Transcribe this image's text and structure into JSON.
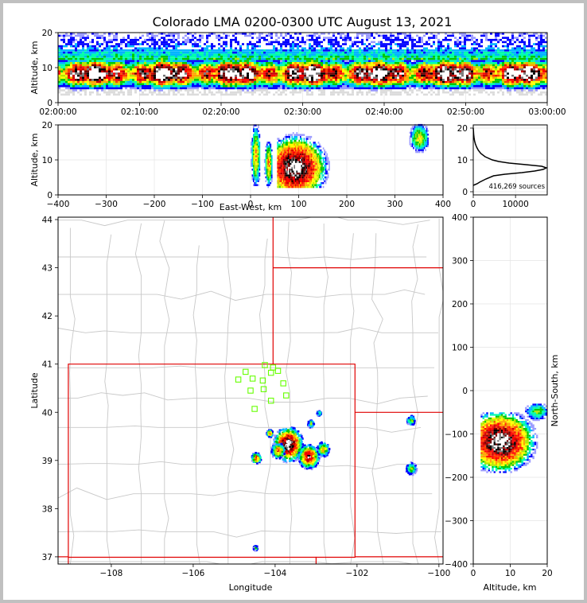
{
  "chart_data": [
    {
      "id": "time_altitude",
      "type": "heatmap",
      "title": "Colorado LMA 0200-0300 UTC August 13, 2021",
      "xlabel": "",
      "ylabel": "Altitude, km",
      "x_ticks": [
        "02:00:00",
        "02:10:00",
        "02:20:00",
        "02:30:00",
        "02:40:00",
        "02:50:00",
        "03:00:00"
      ],
      "y_ticks": [
        0,
        10,
        20
      ],
      "xlim": [
        "02:00:00",
        "03:00:00"
      ],
      "ylim": [
        0,
        20
      ],
      "altitude_band_km": [
        2,
        20
      ],
      "core_altitude_km": [
        5,
        11
      ]
    },
    {
      "id": "east_west_altitude",
      "type": "heatmap",
      "xlabel": "East-West, km",
      "ylabel": "Altitude, km",
      "x_ticks": [
        -400,
        -300,
        -200,
        -100,
        0,
        100,
        200,
        300,
        400
      ],
      "y_ticks": [
        0,
        10,
        20
      ],
      "xlim": [
        -400,
        400
      ],
      "ylim": [
        0,
        20
      ],
      "clusters": [
        {
          "x": [
            0,
            20
          ],
          "alt": [
            2,
            20
          ],
          "peak": 0.5
        },
        {
          "x": [
            28,
            45
          ],
          "alt": [
            2,
            15
          ],
          "peak": 0.55
        },
        {
          "x": [
            55,
            185
          ],
          "alt": [
            2,
            20
          ],
          "peak": 1.0,
          "core_x": 92,
          "core_alt": 7.5
        },
        {
          "x": [
            330,
            370
          ],
          "alt": [
            12,
            20
          ],
          "peak": 0.45
        }
      ]
    },
    {
      "id": "altitude_histogram",
      "type": "line",
      "annotation": "416,269 sources",
      "x_ticks": [
        0,
        10000
      ],
      "y_ticks": [
        0,
        10,
        20
      ],
      "xlim": [
        0,
        17500
      ],
      "ylim": [
        -1,
        21
      ],
      "alt": [
        2,
        2.5,
        3,
        4,
        5,
        5.5,
        6,
        6.5,
        7,
        7.5,
        8,
        8.5,
        9,
        9.5,
        10,
        11,
        12,
        13,
        14,
        15,
        16,
        17,
        18,
        19,
        20
      ],
      "counts": [
        0,
        900,
        1500,
        3000,
        4800,
        7500,
        11500,
        14500,
        16500,
        17300,
        16200,
        12500,
        8500,
        6000,
        4500,
        2800,
        1800,
        1200,
        800,
        500,
        300,
        180,
        100,
        50,
        0
      ]
    },
    {
      "id": "plan_view",
      "type": "heatmap",
      "xlabel": "Longitude",
      "ylabel": "Latitude",
      "x_ticks": [
        -108,
        -106,
        -104,
        -102,
        -100
      ],
      "y_ticks": [
        37,
        38,
        39,
        40,
        41,
        42,
        43,
        44
      ],
      "xlim": [
        -109.3,
        -99.9
      ],
      "ylim": [
        36.85,
        44.05
      ],
      "stations": [
        [
          -104.25,
          40.98
        ],
        [
          -104.05,
          40.93
        ],
        [
          -104.72,
          40.84
        ],
        [
          -104.1,
          40.82
        ],
        [
          -103.93,
          40.86
        ],
        [
          -104.55,
          40.7
        ],
        [
          -104.9,
          40.68
        ],
        [
          -104.3,
          40.66
        ],
        [
          -103.8,
          40.6
        ],
        [
          -104.28,
          40.48
        ],
        [
          -104.6,
          40.45
        ],
        [
          -103.73,
          40.35
        ],
        [
          -104.1,
          40.24
        ],
        [
          -104.5,
          40.07
        ]
      ],
      "storms": [
        {
          "lon": -103.7,
          "lat": 39.35,
          "r": 0.28,
          "peak": 1.0
        },
        {
          "lon": -103.2,
          "lat": 39.1,
          "r": 0.2,
          "peak": 0.8
        },
        {
          "lon": -103.95,
          "lat": 39.22,
          "r": 0.13,
          "peak": 0.55
        },
        {
          "lon": -102.85,
          "lat": 39.25,
          "r": 0.12,
          "peak": 0.5
        },
        {
          "lon": -104.48,
          "lat": 39.07,
          "r": 0.09,
          "peak": 0.7
        },
        {
          "lon": -104.15,
          "lat": 39.58,
          "r": 0.06,
          "peak": 0.5
        },
        {
          "lon": -103.15,
          "lat": 39.78,
          "r": 0.06,
          "peak": 0.4
        },
        {
          "lon": -102.95,
          "lat": 40.0,
          "r": 0.04,
          "peak": 0.3
        },
        {
          "lon": -100.7,
          "lat": 39.85,
          "r": 0.08,
          "peak": 0.35
        },
        {
          "lon": -100.7,
          "lat": 38.85,
          "r": 0.1,
          "peak": 0.35
        },
        {
          "lon": -104.5,
          "lat": 37.2,
          "r": 0.04,
          "peak": 0.3
        }
      ]
    },
    {
      "id": "north_south_altitude",
      "type": "heatmap",
      "xlabel": "Altitude, km",
      "ylabel": "North-South, km",
      "x_ticks": [
        0,
        10,
        20
      ],
      "y_ticks": [
        -400,
        -300,
        -200,
        -100,
        0,
        100,
        200,
        300,
        400
      ],
      "xlim": [
        0,
        20
      ],
      "ylim": [
        -400,
        400
      ],
      "clusters": [
        {
          "ns": [
            -190,
            -50
          ],
          "alt": [
            2,
            20
          ],
          "peak": 1.0,
          "core_ns": -120,
          "core_alt": 7
        },
        {
          "ns": [
            -70,
            -30
          ],
          "alt": [
            14,
            20
          ],
          "peak": 0.35
        }
      ]
    }
  ]
}
